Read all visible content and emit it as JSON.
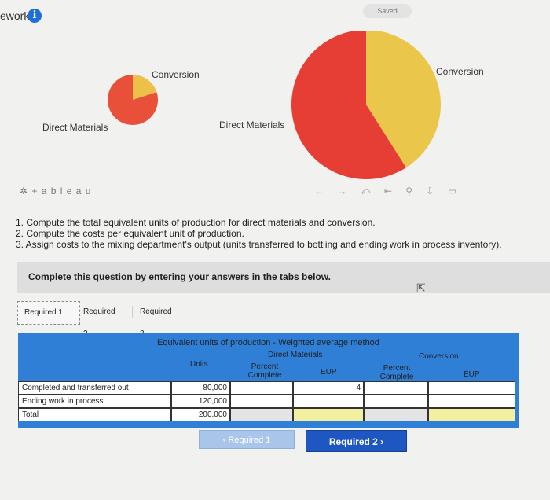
{
  "header": {
    "title": "ework",
    "info_icon": "info-icon",
    "saved_label": "Saved"
  },
  "chart_data": [
    {
      "type": "pie",
      "slices": [
        {
          "label": "Direct Materials",
          "value": 80,
          "color": "#e8503a"
        },
        {
          "label": "Conversion",
          "value": 20,
          "color": "#edc04a"
        }
      ]
    },
    {
      "type": "pie",
      "slices": [
        {
          "label": "Direct Materials",
          "value": 59,
          "color": "#e63e35"
        },
        {
          "label": "Conversion",
          "value": 41,
          "color": "#eac74b"
        }
      ]
    }
  ],
  "tableau": {
    "logo": "+ a b l e a u"
  },
  "instructions": [
    "1. Compute the total equivalent units of production for direct materials and conversion.",
    "2. Compute the costs per equivalent unit of production.",
    "3. Assign costs to the mixing department's output (units transferred to bottling and ending work in process inventory)."
  ],
  "question": {
    "prompt": "Complete this question by entering your answers in the tabs below."
  },
  "tabs": [
    {
      "label": "Required 1"
    },
    {
      "label": "Required 2"
    },
    {
      "label": "Required 3"
    }
  ],
  "table": {
    "title": "Equivalent units of production - Weighted average method",
    "group_dm": "Direct Materials",
    "group_conv": "Conversion",
    "col_units": "Units",
    "col_pct": "Percent Complete",
    "col_eup": "EUP",
    "rows": [
      {
        "label": "Completed and transferred out",
        "units": "80,000",
        "dm_pct": "",
        "dm_eup": "4",
        "conv_pct": "",
        "conv_eup": ""
      },
      {
        "label": "Ending work in process",
        "units": "120,000",
        "dm_pct": "",
        "dm_eup": "",
        "conv_pct": "",
        "conv_eup": ""
      },
      {
        "label": "Total",
        "units": "200,000",
        "dm_pct": "",
        "dm_eup": "",
        "conv_pct": "",
        "conv_eup": ""
      }
    ]
  },
  "nav": {
    "prev_label": "‹  Required 1",
    "next_label": "Required 2  ›"
  }
}
